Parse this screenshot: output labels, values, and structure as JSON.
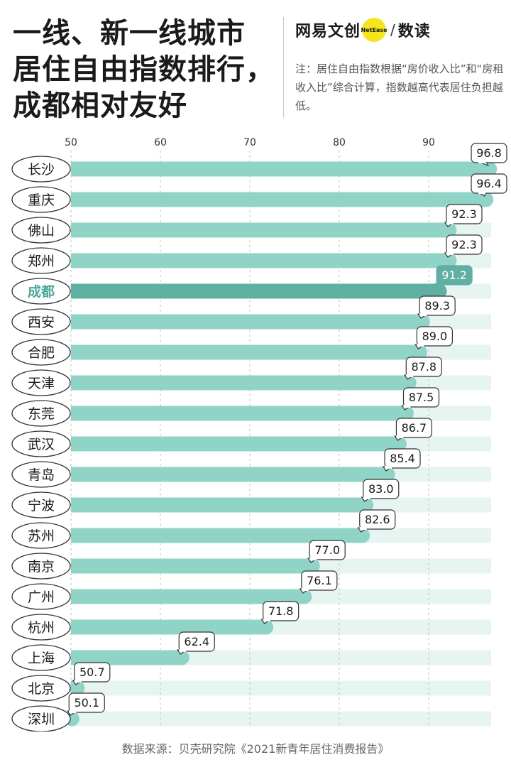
{
  "title_lines": [
    "一线、新一线城市",
    "居住自由指数排行，",
    "成都相对友好"
  ],
  "brand": {
    "name": "网易文创",
    "badge": "NetEase",
    "sub": "数读"
  },
  "note": "注：居住自由指数根据“房价收入比”和“房租收入比”综合计算，指数越高代表居住负担越低。",
  "source": "数据来源：贝壳研究院《2021新青年居住消费报告》",
  "colors": {
    "bar": "#8fd4c7",
    "highlight": "#5fb0a3",
    "track": "#e6f5f1",
    "highlight_text": "#4aa89a",
    "grid": "#bfbfbf"
  },
  "chart_data": {
    "type": "bar",
    "orientation": "horizontal",
    "highlight": "成都",
    "categories": [
      "长沙",
      "重庆",
      "佛山",
      "郑州",
      "成都",
      "西安",
      "合肥",
      "天津",
      "东莞",
      "武汉",
      "青岛",
      "宁波",
      "苏州",
      "南京",
      "广州",
      "杭州",
      "上海",
      "北京",
      "深圳"
    ],
    "values": [
      96.8,
      96.4,
      92.3,
      92.3,
      91.2,
      89.3,
      89.0,
      87.8,
      87.5,
      86.7,
      85.4,
      83.0,
      82.6,
      77.0,
      76.1,
      71.8,
      62.4,
      50.7,
      50.1
    ],
    "value_labels": [
      "96.8",
      "96.4",
      "92.3",
      "92.3",
      "91.2",
      "89.3",
      "89.0",
      "87.8",
      "87.5",
      "86.7",
      "85.4",
      "83.0",
      "82.6",
      "77.0",
      "76.1",
      "71.8",
      "62.4",
      "50.7",
      "50.1"
    ],
    "xlim": [
      50,
      97
    ],
    "xticks": [
      50,
      60,
      70,
      80,
      90
    ],
    "grid": true
  }
}
